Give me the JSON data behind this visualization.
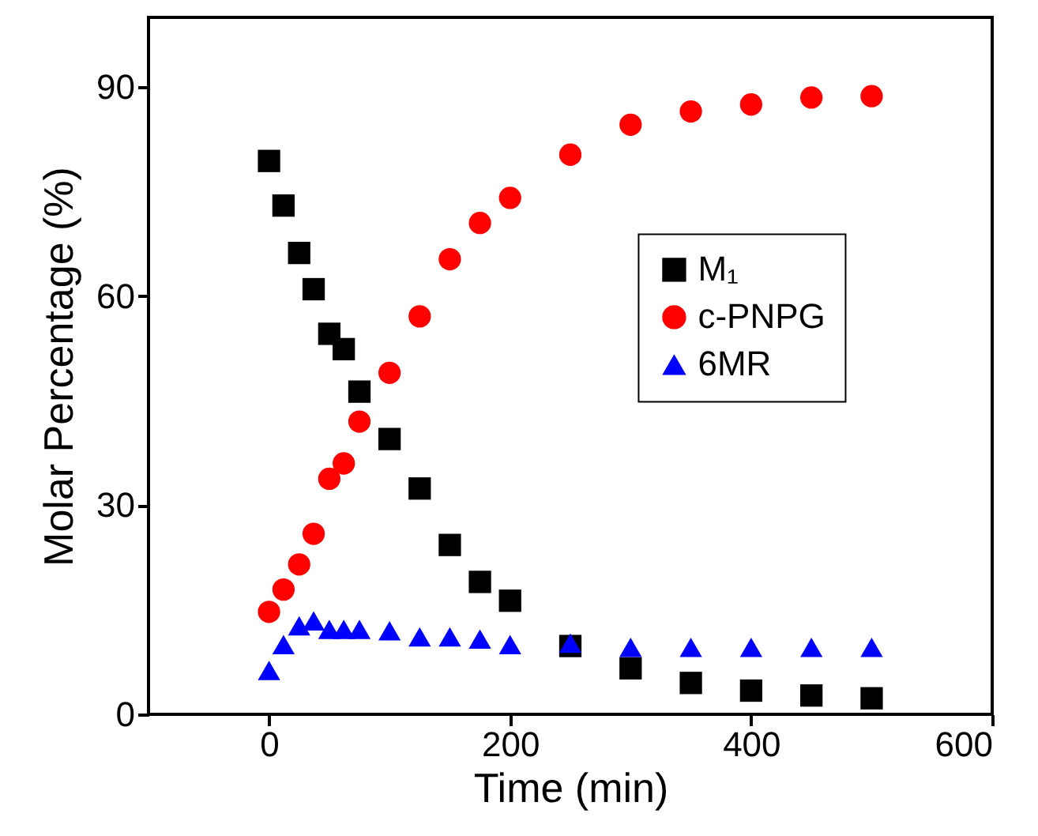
{
  "chart_data": {
    "type": "scatter",
    "xlabel": "Time (min)",
    "ylabel": "Molar Percentage (%)",
    "x": [
      0,
      12,
      25,
      37,
      50,
      62,
      75,
      100,
      125,
      150,
      175,
      200,
      250,
      300,
      350,
      400,
      450,
      500
    ],
    "series": [
      {
        "name": "M₁",
        "color": "#000000",
        "marker": "square",
        "values": [
          79.4,
          73,
          66.2,
          61,
          54.6,
          52.4,
          46.3,
          39.5,
          32.4,
          24.3,
          19,
          16.3,
          9.8,
          6.6,
          4.5,
          3.4,
          2.7,
          2.3
        ]
      },
      {
        "name": "c-PNPG",
        "color": "#ff0000",
        "marker": "circle",
        "values": [
          14.7,
          17.9,
          21.5,
          25.9,
          33.8,
          36,
          42,
          49,
          57.1,
          65.3,
          70.5,
          74.1,
          80.3,
          84.6,
          86.5,
          87.5,
          88.5,
          88.7
        ]
      },
      {
        "name": "6MR",
        "color": "#0000ff",
        "marker": "triangle",
        "values": [
          6.3,
          10,
          12.7,
          13.4,
          12.2,
          12.2,
          12.2,
          12,
          11.1,
          11.1,
          10.8,
          10,
          10.2,
          9.6,
          9.6,
          9.6,
          9.6,
          9.6
        ]
      }
    ],
    "xlim": [
      -100,
      600
    ],
    "xticks": [
      0,
      200,
      400,
      600
    ],
    "ylim": [
      0,
      100
    ],
    "yticks": [
      0,
      30,
      60,
      90
    ],
    "legend": "right",
    "grid": false
  }
}
